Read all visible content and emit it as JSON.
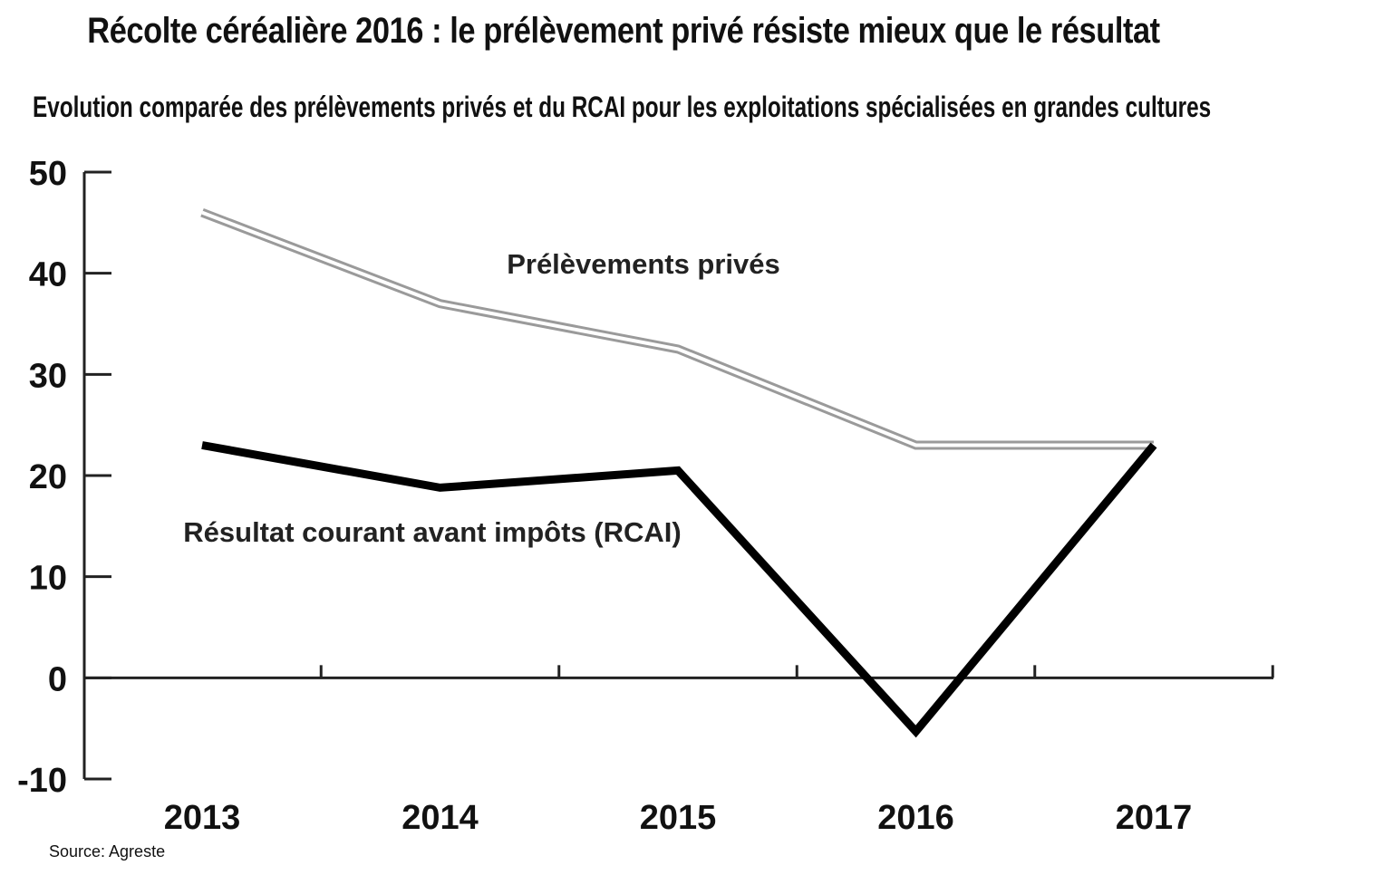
{
  "title": "Récolte céréalière 2016 : le prélèvement privé résiste mieux que le résultat",
  "subtitle": "Evolution comparée des prélèvements privés et du RCAI pour les exploitations spécialisées en grandes cultures",
  "source": "Source: Agreste",
  "chart_data": {
    "type": "line",
    "title": "Récolte céréalière 2016 : le prélèvement privé résiste mieux que le résultat",
    "subtitle": "Evolution comparée des prélèvements privés et du RCAI pour les exploitations spécialisées en grandes cultures",
    "xlabel": "",
    "ylabel": "",
    "categories": [
      "2013",
      "2014",
      "2015",
      "2016",
      "2017"
    ],
    "ylim": [
      -10,
      50
    ],
    "yticks": [
      -10,
      0,
      10,
      20,
      30,
      40,
      50
    ],
    "grid": false,
    "legend": "none (labels placed on the chart)",
    "series": [
      {
        "name": "Prélèvements privés",
        "values": [
          46,
          37,
          32.5,
          23,
          23
        ],
        "style": "double-outline",
        "color": "#9a9a9a"
      },
      {
        "name": "Résultat courant avant impôts (RCAI)",
        "values": [
          23,
          18.8,
          20.5,
          -5.3,
          23
        ],
        "style": "thick",
        "color": "#000000"
      }
    ],
    "source": "Source: Agreste"
  }
}
